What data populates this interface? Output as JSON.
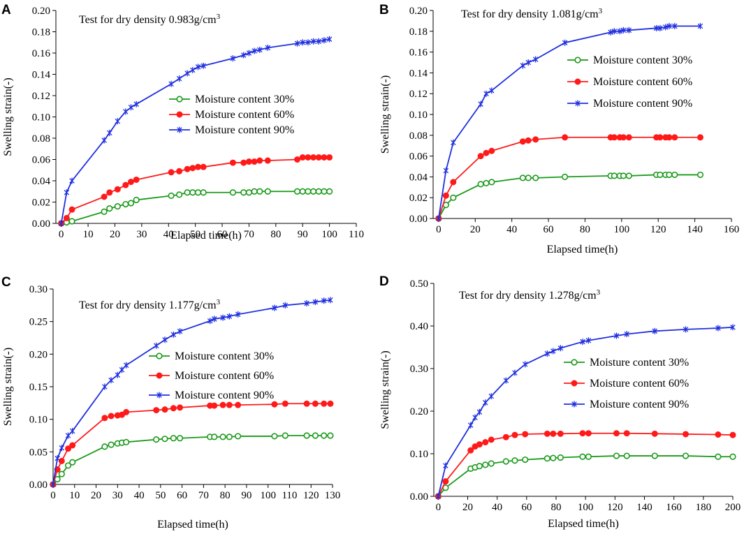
{
  "chart_data": [
    {
      "panel": "A",
      "type": "line",
      "title": "Test for dry density 0.983g/cm",
      "title_superscript": "3",
      "xlabel": "Elapsed time(h)",
      "ylabel": "Swelling strain(-)",
      "xlim": [
        -2,
        110
      ],
      "ylim": [
        0,
        0.2
      ],
      "xticks": [
        0,
        10,
        20,
        30,
        40,
        50,
        60,
        70,
        80,
        90,
        100,
        110
      ],
      "yticks": [
        0,
        0.02,
        0.04,
        0.06,
        0.08,
        0.1,
        0.12,
        0.14,
        0.16,
        0.18,
        0.2
      ],
      "xtick_labels": [
        "0",
        "10",
        "20",
        "30",
        "40",
        "50",
        "60",
        "70",
        "80",
        "90",
        "100",
        "110"
      ],
      "ytick_labels": [
        "0.00",
        "0.02",
        "0.04",
        "0.06",
        "0.08",
        "0.10",
        "0.12",
        "0.14",
        "0.16",
        "0.18",
        "0.20"
      ],
      "legend_position": "middle-left",
      "series": [
        {
          "name": "Moisture content 30%",
          "color": "#1a9a1a",
          "marker": "circle-open",
          "x": [
            0,
            2,
            4,
            16,
            18,
            21,
            24,
            26,
            28,
            41,
            44,
            47,
            49,
            51,
            53,
            64,
            68,
            70,
            72,
            74,
            77,
            88,
            90,
            92,
            94,
            96,
            98,
            100
          ],
          "y": [
            0,
            0.001,
            0.002,
            0.011,
            0.014,
            0.016,
            0.018,
            0.019,
            0.022,
            0.026,
            0.027,
            0.029,
            0.029,
            0.029,
            0.029,
            0.029,
            0.029,
            0.029,
            0.03,
            0.03,
            0.03,
            0.03,
            0.03,
            0.03,
            0.03,
            0.03,
            0.03,
            0.03
          ]
        },
        {
          "name": "Moisture content 60%",
          "color": "#ff1a1a",
          "marker": "circle-filled",
          "x": [
            0,
            2,
            4,
            16,
            18,
            21,
            24,
            26,
            28,
            41,
            44,
            47,
            49,
            51,
            53,
            64,
            68,
            70,
            72,
            74,
            77,
            88,
            90,
            92,
            94,
            96,
            98,
            100
          ],
          "y": [
            0,
            0.005,
            0.013,
            0.025,
            0.029,
            0.032,
            0.036,
            0.039,
            0.041,
            0.048,
            0.049,
            0.051,
            0.052,
            0.053,
            0.053,
            0.057,
            0.057,
            0.058,
            0.058,
            0.059,
            0.059,
            0.06,
            0.062,
            0.062,
            0.062,
            0.062,
            0.062,
            0.062
          ]
        },
        {
          "name": "Moisture content 90%",
          "color": "#1f2fe0",
          "marker": "asterisk",
          "x": [
            0,
            2,
            4,
            16,
            18,
            21,
            24,
            26,
            28,
            41,
            44,
            47,
            49,
            51,
            53,
            64,
            68,
            70,
            72,
            74,
            77,
            88,
            90,
            92,
            94,
            96,
            98,
            100
          ],
          "y": [
            0,
            0.029,
            0.04,
            0.078,
            0.085,
            0.096,
            0.105,
            0.109,
            0.112,
            0.131,
            0.136,
            0.141,
            0.144,
            0.147,
            0.148,
            0.155,
            0.158,
            0.16,
            0.162,
            0.163,
            0.165,
            0.169,
            0.17,
            0.17,
            0.171,
            0.171,
            0.172,
            0.173
          ]
        }
      ]
    },
    {
      "panel": "B",
      "type": "line",
      "title": "Test for dry density 1.081g/cm",
      "title_superscript": "3",
      "xlabel": "Elapsed time(h)",
      "ylabel": "Swelling strain(-)",
      "xlim": [
        -3,
        160
      ],
      "ylim": [
        0,
        0.2
      ],
      "xticks": [
        0,
        20,
        40,
        60,
        80,
        100,
        120,
        140,
        160
      ],
      "yticks": [
        0,
        0.02,
        0.04,
        0.06,
        0.08,
        0.1,
        0.12,
        0.14,
        0.16,
        0.18,
        0.2
      ],
      "xtick_labels": [
        "0",
        "20",
        "40",
        "60",
        "80",
        "100",
        "120",
        "140",
        "160"
      ],
      "ytick_labels": [
        "0.00",
        "0.02",
        "0.04",
        "0.06",
        "0.08",
        "0.10",
        "0.12",
        "0.14",
        "0.16",
        "0.18",
        "0.20"
      ],
      "legend_position": "right",
      "series": [
        {
          "name": "Moisture content 30%",
          "color": "#1a9a1a",
          "marker": "circle-open",
          "x": [
            0,
            4,
            8,
            23,
            26,
            29,
            46,
            49,
            53,
            69,
            94,
            96,
            99,
            101,
            104,
            119,
            121,
            124,
            126,
            129,
            143
          ],
          "y": [
            0,
            0.013,
            0.02,
            0.033,
            0.034,
            0.035,
            0.039,
            0.039,
            0.039,
            0.04,
            0.041,
            0.041,
            0.041,
            0.041,
            0.041,
            0.042,
            0.042,
            0.042,
            0.042,
            0.042,
            0.042
          ]
        },
        {
          "name": "Moisture content 60%",
          "color": "#ff1a1a",
          "marker": "circle-filled",
          "x": [
            0,
            4,
            8,
            23,
            26,
            29,
            46,
            49,
            53,
            69,
            94,
            96,
            99,
            101,
            104,
            119,
            121,
            124,
            126,
            129,
            143
          ],
          "y": [
            0,
            0.022,
            0.035,
            0.06,
            0.063,
            0.065,
            0.074,
            0.075,
            0.076,
            0.078,
            0.078,
            0.078,
            0.078,
            0.078,
            0.078,
            0.078,
            0.078,
            0.078,
            0.078,
            0.078,
            0.078
          ]
        },
        {
          "name": "Moisture content 90%",
          "color": "#1f2fe0",
          "marker": "asterisk",
          "x": [
            0,
            4,
            8,
            23,
            26,
            29,
            46,
            49,
            53,
            69,
            94,
            96,
            99,
            101,
            104,
            119,
            121,
            124,
            126,
            129,
            143
          ],
          "y": [
            0,
            0.046,
            0.073,
            0.11,
            0.12,
            0.123,
            0.147,
            0.15,
            0.153,
            0.169,
            0.179,
            0.18,
            0.18,
            0.181,
            0.181,
            0.183,
            0.183,
            0.184,
            0.185,
            0.185,
            0.185
          ]
        }
      ]
    },
    {
      "panel": "C",
      "type": "line",
      "title": "Test for dry density 1.177g/cm",
      "title_superscript": "3",
      "xlabel": "Elapsed time(h)",
      "ylabel": "Swelling strain(-)",
      "xlim": [
        0,
        130
      ],
      "ylim": [
        0,
        0.3
      ],
      "xticks": [
        0,
        10,
        20,
        30,
        40,
        50,
        60,
        70,
        80,
        90,
        100,
        110,
        120,
        130
      ],
      "yticks": [
        0,
        0.05,
        0.1,
        0.15,
        0.2,
        0.25,
        0.3
      ],
      "xtick_labels": [
        "0",
        "10",
        "20",
        "30",
        "40",
        "50",
        "60",
        "70",
        "80",
        "90",
        "100",
        "110",
        "120",
        "130"
      ],
      "ytick_labels": [
        "0.00",
        "0.05",
        "0.10",
        "0.15",
        "0.20",
        "0.25",
        "0.30"
      ],
      "legend_position": "middle-right",
      "series": [
        {
          "name": "Moisture content 30%",
          "color": "#1a9a1a",
          "marker": "circle-open",
          "x": [
            0,
            2,
            4,
            7,
            9,
            24,
            27,
            30,
            32,
            34,
            48,
            52,
            56,
            59,
            73,
            75,
            79,
            82,
            86,
            103,
            108,
            118,
            122,
            126,
            129
          ],
          "y": [
            0,
            0.008,
            0.016,
            0.029,
            0.034,
            0.058,
            0.061,
            0.063,
            0.064,
            0.065,
            0.069,
            0.07,
            0.071,
            0.071,
            0.073,
            0.073,
            0.073,
            0.073,
            0.074,
            0.074,
            0.075,
            0.075,
            0.075,
            0.075,
            0.075
          ]
        },
        {
          "name": "Moisture content 60%",
          "color": "#ff1a1a",
          "marker": "circle-filled",
          "x": [
            0,
            2,
            4,
            7,
            9,
            24,
            27,
            30,
            32,
            34,
            48,
            52,
            56,
            59,
            73,
            75,
            79,
            82,
            86,
            103,
            108,
            118,
            122,
            126,
            129
          ],
          "y": [
            0,
            0.023,
            0.036,
            0.055,
            0.06,
            0.102,
            0.105,
            0.106,
            0.107,
            0.111,
            0.114,
            0.115,
            0.117,
            0.118,
            0.121,
            0.121,
            0.122,
            0.122,
            0.122,
            0.123,
            0.124,
            0.124,
            0.124,
            0.124,
            0.124
          ]
        },
        {
          "name": "Moisture content 90%",
          "color": "#1f2fe0",
          "marker": "asterisk",
          "x": [
            0,
            2,
            4,
            7,
            9,
            24,
            27,
            30,
            32,
            34,
            48,
            52,
            56,
            59,
            73,
            75,
            79,
            82,
            86,
            103,
            108,
            118,
            122,
            126,
            129
          ],
          "y": [
            0,
            0.04,
            0.056,
            0.075,
            0.082,
            0.15,
            0.16,
            0.168,
            0.176,
            0.183,
            0.213,
            0.222,
            0.23,
            0.235,
            0.251,
            0.254,
            0.256,
            0.258,
            0.261,
            0.271,
            0.275,
            0.278,
            0.28,
            0.282,
            0.283
          ]
        }
      ]
    },
    {
      "panel": "D",
      "type": "line",
      "title": "Test for dry density 1.278g/cm",
      "title_superscript": "3",
      "xlabel": "Elapsed time(h)",
      "ylabel": "Swelling strain(-)",
      "xlim": [
        -3,
        200
      ],
      "ylim": [
        0,
        0.5
      ],
      "xticks": [
        0,
        20,
        40,
        60,
        80,
        100,
        120,
        140,
        160,
        180,
        200
      ],
      "yticks": [
        0,
        0.1,
        0.2,
        0.3,
        0.4,
        0.5
      ],
      "xtick_labels": [
        "0",
        "20",
        "40",
        "60",
        "80",
        "100",
        "120",
        "140",
        "160",
        "180",
        "200"
      ],
      "ytick_labels": [
        "0.00",
        "0.10",
        "0.20",
        "0.30",
        "0.40",
        "0.50"
      ],
      "legend_position": "middle-right",
      "series": [
        {
          "name": "Moisture content 30%",
          "color": "#1a9a1a",
          "marker": "circle-open",
          "x": [
            0,
            5,
            22,
            25,
            28,
            32,
            36,
            46,
            52,
            59,
            74,
            78,
            83,
            98,
            102,
            121,
            128,
            147,
            168,
            190,
            200
          ],
          "y": [
            0,
            0.02,
            0.065,
            0.068,
            0.071,
            0.074,
            0.077,
            0.082,
            0.084,
            0.086,
            0.089,
            0.09,
            0.091,
            0.093,
            0.093,
            0.095,
            0.095,
            0.095,
            0.095,
            0.093,
            0.093
          ]
        },
        {
          "name": "Moisture content 60%",
          "color": "#ff1a1a",
          "marker": "circle-filled",
          "x": [
            0,
            5,
            22,
            25,
            28,
            32,
            36,
            46,
            52,
            59,
            74,
            78,
            83,
            98,
            102,
            121,
            128,
            147,
            168,
            190,
            200
          ],
          "y": [
            0,
            0.035,
            0.108,
            0.117,
            0.122,
            0.127,
            0.133,
            0.139,
            0.144,
            0.146,
            0.147,
            0.147,
            0.147,
            0.148,
            0.148,
            0.148,
            0.148,
            0.147,
            0.146,
            0.145,
            0.144
          ]
        },
        {
          "name": "Moisture content 90%",
          "color": "#1f2fe0",
          "marker": "asterisk",
          "x": [
            0,
            5,
            22,
            25,
            28,
            32,
            36,
            46,
            52,
            59,
            74,
            78,
            83,
            98,
            102,
            121,
            128,
            147,
            168,
            190,
            200
          ],
          "y": [
            0,
            0.072,
            0.167,
            0.185,
            0.198,
            0.22,
            0.235,
            0.272,
            0.29,
            0.31,
            0.335,
            0.341,
            0.348,
            0.363,
            0.366,
            0.377,
            0.381,
            0.388,
            0.392,
            0.395,
            0.397
          ]
        }
      ]
    }
  ]
}
